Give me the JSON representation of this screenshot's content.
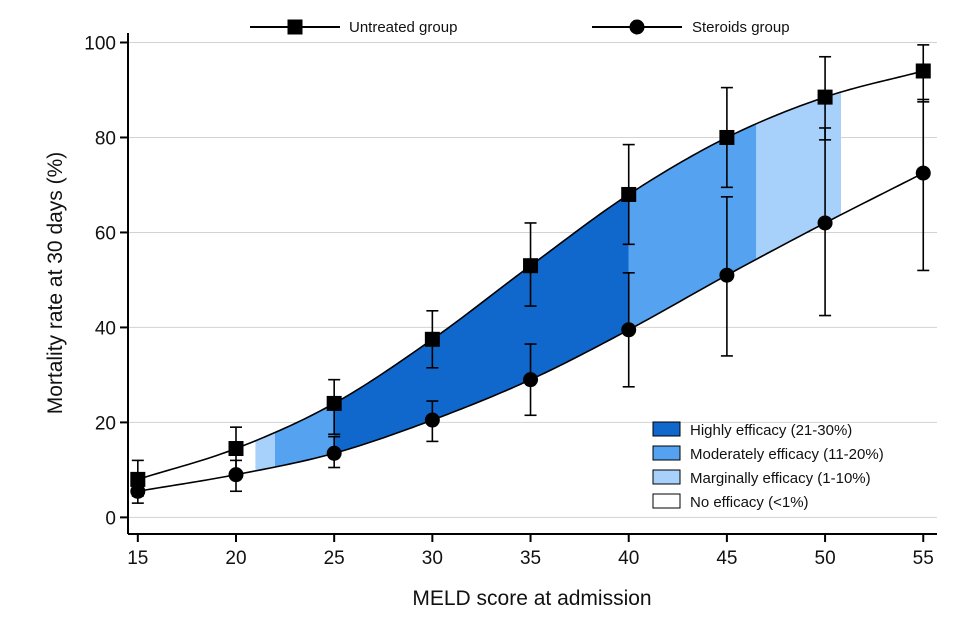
{
  "chart_data": {
    "type": "line",
    "xlabel": "MELD score at admission",
    "ylabel": "Mortality rate at 30 days (%)",
    "xlim": [
      14.5,
      55.7
    ],
    "ylim": [
      -3.5,
      102
    ],
    "x_ticks": [
      15,
      20,
      25,
      30,
      35,
      40,
      45,
      50,
      55
    ],
    "y_ticks": [
      0,
      20,
      40,
      60,
      80,
      100
    ],
    "grid": "horizontal",
    "series": [
      {
        "name": "Untreated group",
        "marker": "square",
        "x": [
          15,
          20,
          25,
          30,
          35,
          40,
          45,
          50,
          55
        ],
        "y": [
          8,
          14.5,
          24,
          37.5,
          53,
          68,
          80,
          88.5,
          94
        ],
        "err_low": [
          4.5,
          9.5,
          17.5,
          31.5,
          44.5,
          57.5,
          69.5,
          79.5,
          87.5
        ],
        "err_high": [
          12,
          19,
          29,
          43.5,
          62,
          78.5,
          90.5,
          97,
          99.5
        ]
      },
      {
        "name": "Steroids group",
        "marker": "circle",
        "x": [
          15,
          20,
          25,
          30,
          35,
          40,
          45,
          50,
          55
        ],
        "y": [
          5.5,
          9,
          13.5,
          20.5,
          29,
          39.5,
          51,
          62,
          72.5
        ],
        "err_low": [
          3,
          5.5,
          10.5,
          16,
          21.5,
          27.5,
          34,
          42.5,
          52
        ],
        "err_high": [
          8,
          12,
          17,
          24.5,
          36.5,
          51.5,
          67.5,
          82,
          88
        ]
      }
    ],
    "efficacy_bands": [
      {
        "label": "Marginally efficacy (1-10%)",
        "level": "marginal",
        "x_start": 21,
        "x_end": 22
      },
      {
        "label": "Moderately efficacy (11-20%)",
        "level": "moderate",
        "x_start": 22,
        "x_end": 25
      },
      {
        "label": "Highly efficacy (21-30%)",
        "level": "high",
        "x_start": 25,
        "x_end": 40
      },
      {
        "label": "Moderately efficacy (11-20%)",
        "level": "moderate",
        "x_start": 40,
        "x_end": 46.5
      },
      {
        "label": "Marginally efficacy (1-10%)",
        "level": "marginal",
        "x_start": 46.5,
        "x_end": 50.8
      }
    ],
    "legend": {
      "top": [
        "Untreated group",
        "Steroids group"
      ],
      "bottom_right": [
        {
          "label": "Highly efficacy (21-30%)",
          "level": "high"
        },
        {
          "label": "Moderately efficacy (11-20%)",
          "level": "moderate"
        },
        {
          "label": "Marginally efficacy (1-10%)",
          "level": "marginal"
        },
        {
          "label": "No efficacy (<1%)",
          "level": "none"
        }
      ]
    },
    "colors": {
      "high": "#1168cc",
      "moderate": "#54a2f0",
      "marginal": "#a7d0fa",
      "none": "#ffffff",
      "line": "#000000",
      "grid": "#d3d3d3"
    }
  }
}
